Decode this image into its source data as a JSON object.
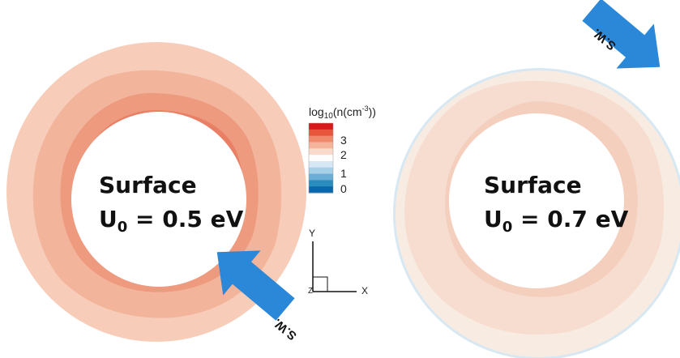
{
  "left_panel": {
    "title_line1": "Surface",
    "u_symbol": "U",
    "u_subscript": "0",
    "u_value": " = 0.5 eV",
    "arrow_label": "S.W."
  },
  "right_panel": {
    "title_line1": "Surface",
    "u_symbol": "U",
    "u_subscript": "0",
    "u_value": " = 0.7 eV",
    "arrow_label": "S.W."
  },
  "colorbar": {
    "title_prefix": "log",
    "title_sub": "10",
    "title_mid": "(n(cm",
    "title_sup": "-3",
    "title_suffix": "))",
    "ticks": [
      "3",
      "2",
      "1",
      "0"
    ],
    "colors": [
      "#d7191c",
      "#e8553d",
      "#f08a6c",
      "#f5b39b",
      "#fadacc",
      "#ffffff",
      "#d6e8f4",
      "#a8cfe8",
      "#6aaed6",
      "#2b8cbe",
      "#0868ac"
    ]
  },
  "axes_triad": {
    "y_label": "Y",
    "x_label": "X",
    "z_label": "Z"
  },
  "colors": {
    "arrow": "#2b88d8",
    "left_outer": "#f7cdb9",
    "left_mid": "#f3b49c",
    "left_inner": "#ee9a7e",
    "left_edge": "#e97f64",
    "right_outer": "#f8ebe2",
    "right_mid": "#f6ddd0",
    "right_inner": "#f4cfbd",
    "right_rim": "#d8e8f3"
  }
}
